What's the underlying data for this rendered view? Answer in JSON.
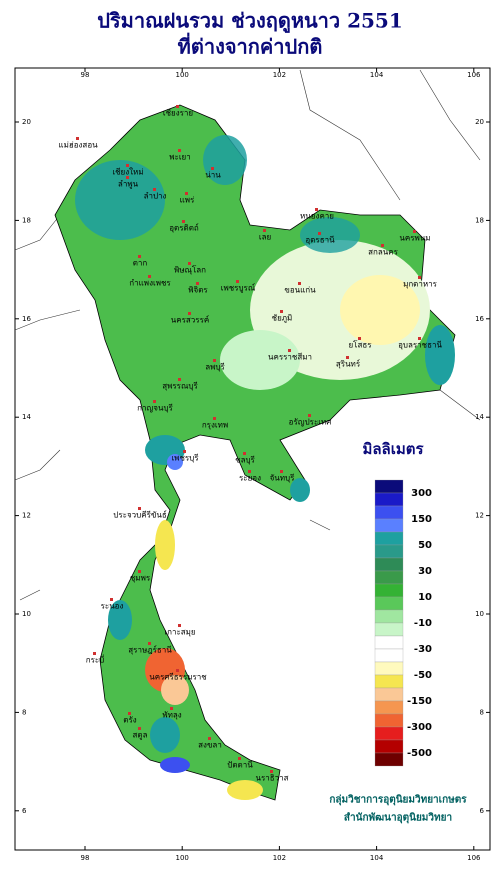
{
  "title": [
    "ปริมาณฝนรวม ช่วงฤดูหนาว 2551",
    "ที่ต่างจากค่าปกติ"
  ],
  "map": {
    "xticks": [
      98,
      100,
      102,
      104,
      106
    ],
    "yticks": [
      20,
      18,
      16,
      14,
      12,
      10,
      8,
      6
    ],
    "places": [
      "เชียงราย",
      "แม่ฮ่องสอน",
      "พะเยา",
      "เชียงใหม่",
      "น่าน",
      "ลำพูน",
      "ลำปาง",
      "แพร่",
      "อุตรดิตถ์",
      "ตาก",
      "พิษณุโลก",
      "กำแพงเพชร",
      "พิจิตร",
      "เพชรบูรณ์",
      "นครสวรรค์",
      "เลย",
      "หนองคาย",
      "อุดรธานี",
      "สกลนคร",
      "นครพนม",
      "มุกดาหาร",
      "ขอนแก่น",
      "ชัยภูมิ",
      "ยโสธร",
      "อุบลราชธานี",
      "สุรินทร์",
      "นครราชสีมา",
      "ลพบุรี",
      "สุพรรณบุรี",
      "กาญจนบุรี",
      "กรุงเทพ",
      "อรัญประเทศ",
      "เพชรบุรี",
      "ชลบุรี",
      "ระยอง",
      "จันทบุรี",
      "ประจวบคีรีขันธ์",
      "ชุมพร",
      "ระนอง",
      "เกาะสมุย",
      "สุราษฎร์ธานี",
      "กระบี่",
      "นครศรีธรรมราช",
      "พัทลุง",
      "ตรัง",
      "สตูล",
      "สงขลา",
      "ปัตตานี",
      "นราธิวาส"
    ]
  },
  "legend": {
    "title": "มิลลิเมตร",
    "labels": [
      300,
      150,
      50,
      30,
      10,
      -10,
      -30,
      -50,
      -150,
      -300,
      -500
    ],
    "colors": [
      "#0b0b7a",
      "#1a1ac8",
      "#3c50f0",
      "#5a80ff",
      "#1ea0a0",
      "#2a9a8a",
      "#2e8b57",
      "#3a9a4a",
      "#34b234",
      "#5ac85a",
      "#a0e6a0",
      "#c8f5c8",
      "#ffffff",
      "#ffffff",
      "#fffabe",
      "#f5e650",
      "#fac896",
      "#f59650",
      "#f06432",
      "#e61e1e",
      "#b40000",
      "#6e0000"
    ]
  },
  "credit": [
    "กลุ่มวิชาการอุตุนิยมวิทยาเกษตร",
    "สำนักพัฒนาอุตุนิยมวิทยา"
  ]
}
